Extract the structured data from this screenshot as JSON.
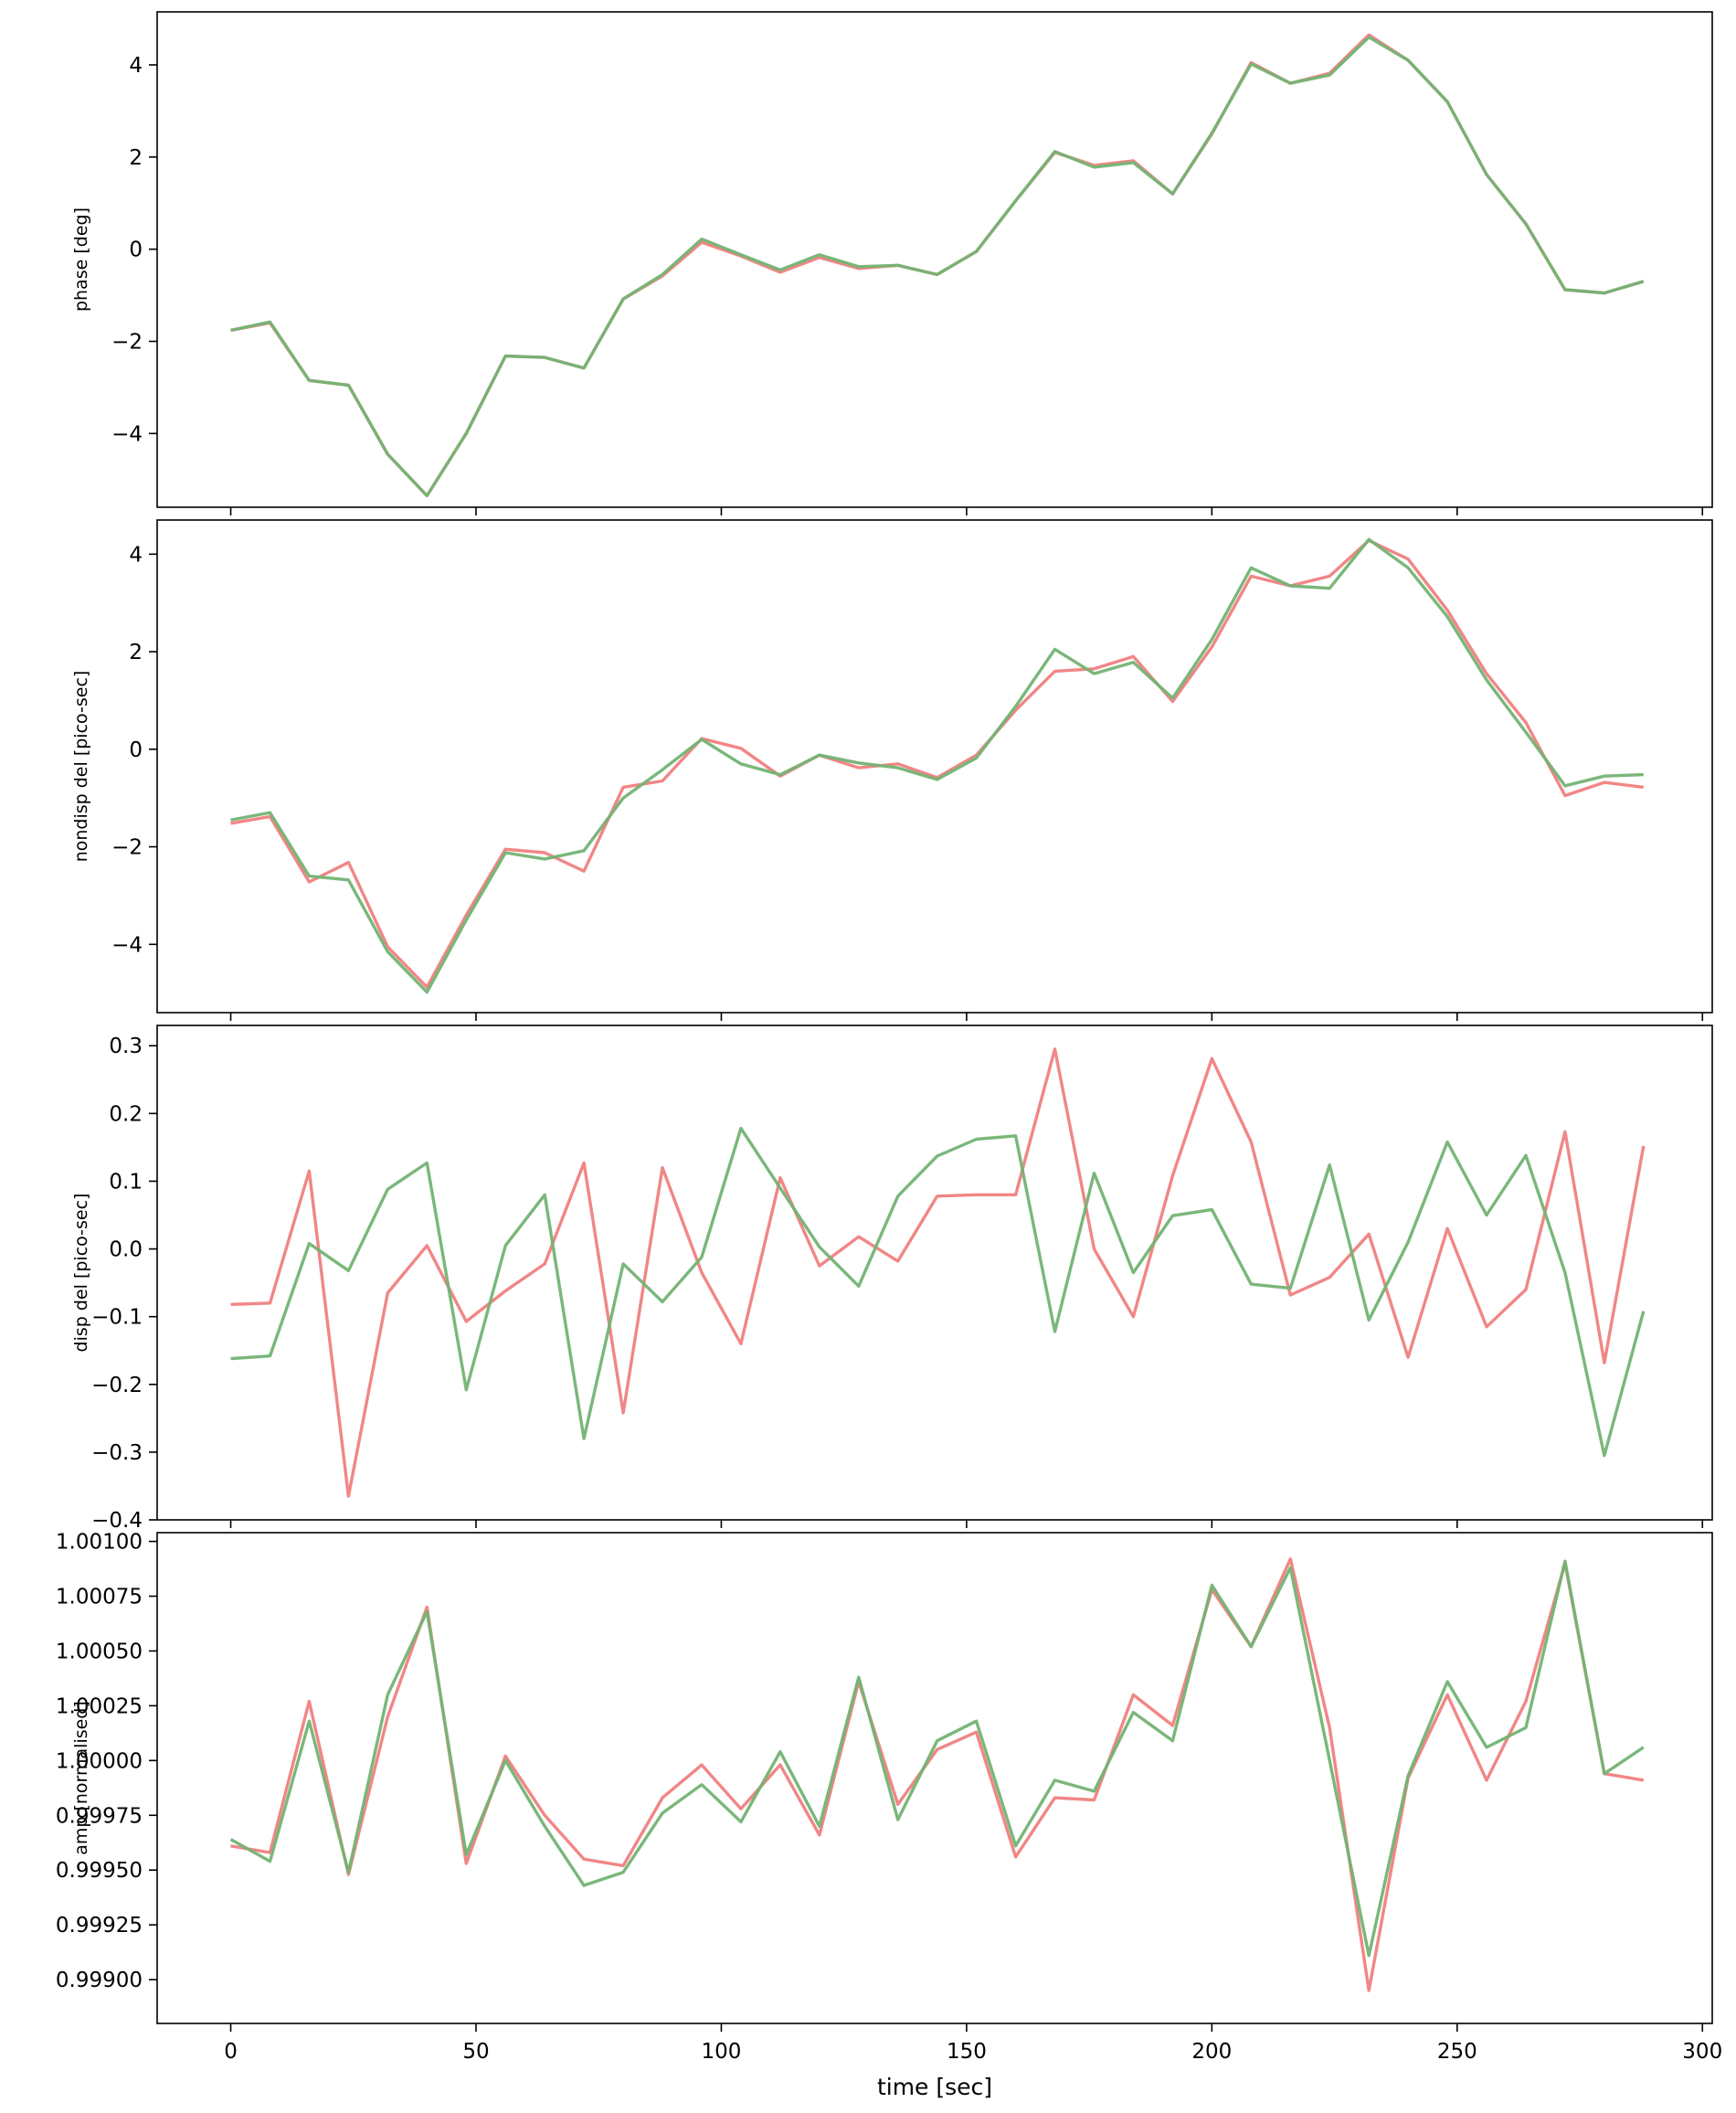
{
  "chart_data": [
    {
      "type": "line",
      "ylabel": "phase [deg]",
      "xlim": [
        -15,
        302
      ],
      "ylim": [
        -5.6,
        5.15
      ],
      "yticks": [
        -4,
        -2,
        0,
        2,
        4
      ],
      "ytick_labels": [
        "−4",
        "−2",
        "0",
        "2",
        "4"
      ],
      "x": [
        0,
        8,
        16,
        24,
        32,
        40,
        48,
        56,
        64,
        72,
        80,
        88,
        96,
        104,
        112,
        120,
        128,
        136,
        144,
        152,
        160,
        168,
        176,
        184,
        192,
        200,
        208,
        216,
        224,
        232,
        240,
        248,
        256,
        264,
        272,
        280,
        288
      ],
      "series": [
        {
          "color": "#f08080",
          "values": [
            -1.76,
            -1.6,
            -2.85,
            -2.95,
            -4.45,
            -5.35,
            -4.0,
            -2.32,
            -2.35,
            -2.58,
            -1.08,
            -0.58,
            0.15,
            -0.15,
            -0.5,
            -0.18,
            -0.42,
            -0.35,
            -0.55,
            -0.05,
            1.05,
            2.1,
            1.82,
            1.92,
            1.2,
            2.5,
            4.05,
            3.6,
            3.82,
            4.65,
            4.1,
            3.2,
            1.62,
            0.55,
            -0.88,
            -0.95,
            -0.7
          ]
        },
        {
          "color": "#73b373",
          "values": [
            -1.76,
            -1.58,
            -2.85,
            -2.95,
            -4.45,
            -5.35,
            -4.0,
            -2.32,
            -2.35,
            -2.58,
            -1.08,
            -0.55,
            0.22,
            -0.12,
            -0.45,
            -0.12,
            -0.38,
            -0.35,
            -0.55,
            -0.05,
            1.05,
            2.12,
            1.78,
            1.88,
            1.2,
            2.52,
            4.02,
            3.6,
            3.78,
            4.6,
            4.1,
            3.2,
            1.62,
            0.55,
            -0.88,
            -0.95,
            -0.7
          ]
        }
      ]
    },
    {
      "type": "line",
      "ylabel": "nondisp del [pico-sec]",
      "xlim": [
        -15,
        302
      ],
      "ylim": [
        -5.4,
        4.7
      ],
      "yticks": [
        -4,
        -2,
        0,
        2,
        4
      ],
      "ytick_labels": [
        "−4",
        "−2",
        "0",
        "2",
        "4"
      ],
      "x": [
        0,
        8,
        16,
        24,
        32,
        40,
        48,
        56,
        64,
        72,
        80,
        88,
        96,
        104,
        112,
        120,
        128,
        136,
        144,
        152,
        160,
        168,
        176,
        184,
        192,
        200,
        208,
        216,
        224,
        232,
        240,
        248,
        256,
        264,
        272,
        280,
        288
      ],
      "series": [
        {
          "color": "#f08080",
          "values": [
            -1.52,
            -1.38,
            -2.72,
            -2.32,
            -4.05,
            -4.88,
            -3.4,
            -2.05,
            -2.12,
            -2.5,
            -0.78,
            -0.65,
            0.22,
            0.02,
            -0.55,
            -0.12,
            -0.38,
            -0.3,
            -0.58,
            -0.12,
            0.8,
            1.6,
            1.65,
            1.9,
            0.98,
            2.1,
            3.55,
            3.35,
            3.55,
            4.28,
            3.9,
            2.85,
            1.55,
            0.55,
            -0.95,
            -0.68,
            -0.78
          ]
        },
        {
          "color": "#73b373",
          "values": [
            -1.45,
            -1.3,
            -2.6,
            -2.68,
            -4.15,
            -4.98,
            -3.5,
            -2.12,
            -2.25,
            -2.08,
            -1.0,
            -0.42,
            0.2,
            -0.3,
            -0.52,
            -0.12,
            -0.28,
            -0.38,
            -0.62,
            -0.18,
            0.88,
            2.05,
            1.55,
            1.78,
            1.05,
            2.25,
            3.72,
            3.35,
            3.3,
            4.3,
            3.72,
            2.72,
            1.42,
            0.35,
            -0.75,
            -0.55,
            -0.52
          ]
        }
      ]
    },
    {
      "type": "line",
      "ylabel": "disp del [pico-sec]",
      "xlim": [
        -15,
        302
      ],
      "ylim": [
        -0.4,
        0.33
      ],
      "yticks": [
        -0.4,
        -0.3,
        -0.2,
        -0.1,
        0.0,
        0.1,
        0.2,
        0.3
      ],
      "ytick_labels": [
        "−0.4",
        "−0.3",
        "−0.2",
        "−0.1",
        "0.0",
        "0.1",
        "0.2",
        "0.3"
      ],
      "x": [
        0,
        8,
        16,
        24,
        32,
        40,
        48,
        56,
        64,
        72,
        80,
        88,
        96,
        104,
        112,
        120,
        128,
        136,
        144,
        152,
        160,
        168,
        176,
        184,
        192,
        200,
        208,
        216,
        224,
        232,
        240,
        248,
        256,
        264,
        272,
        280,
        288
      ],
      "series": [
        {
          "color": "#f08080",
          "values": [
            -0.082,
            -0.08,
            0.115,
            -0.365,
            -0.065,
            0.005,
            -0.107,
            -0.062,
            -0.022,
            0.127,
            -0.242,
            0.12,
            -0.035,
            -0.14,
            0.105,
            -0.025,
            0.018,
            -0.018,
            0.078,
            0.08,
            0.08,
            0.295,
            0.0,
            -0.1,
            0.108,
            0.281,
            0.158,
            -0.068,
            -0.042,
            0.022,
            -0.16,
            0.03,
            -0.115,
            -0.06,
            0.173,
            -0.168,
            0.152
          ]
        },
        {
          "color": "#73b373",
          "values": [
            -0.162,
            -0.158,
            0.008,
            -0.032,
            0.088,
            0.127,
            -0.208,
            0.005,
            0.08,
            -0.28,
            -0.022,
            -0.078,
            -0.012,
            0.178,
            0.09,
            0.003,
            -0.055,
            0.078,
            0.137,
            0.162,
            0.167,
            -0.122,
            0.112,
            -0.035,
            0.049,
            0.058,
            -0.052,
            -0.058,
            0.124,
            -0.105,
            0.01,
            0.158,
            0.05,
            0.138,
            -0.035,
            -0.305,
            -0.092
          ]
        }
      ]
    },
    {
      "type": "line",
      "ylabel": "amp [normalised]",
      "xlabel": "time [sec]",
      "xlim": [
        -15,
        302
      ],
      "ylim": [
        0.9988,
        1.00104
      ],
      "yticks": [
        0.999,
        0.99925,
        0.9995,
        0.99975,
        1.0,
        1.00025,
        1.0005,
        1.00075,
        1.001
      ],
      "ytick_labels": [
        "0.99900",
        "0.99925",
        "0.99950",
        "0.99975",
        "1.00000",
        "1.00025",
        "1.00050",
        "1.00075",
        "1.00100"
      ],
      "xticks": [
        0,
        50,
        100,
        150,
        200,
        250,
        300
      ],
      "xtick_labels": [
        "0",
        "50",
        "100",
        "150",
        "200",
        "250",
        "300"
      ],
      "x": [
        0,
        8,
        16,
        24,
        32,
        40,
        48,
        56,
        64,
        72,
        80,
        88,
        96,
        104,
        112,
        120,
        128,
        136,
        144,
        152,
        160,
        168,
        176,
        184,
        192,
        200,
        208,
        216,
        224,
        232,
        240,
        248,
        256,
        264,
        272,
        280,
        288
      ],
      "series": [
        {
          "color": "#f08080",
          "values": [
            0.99961,
            0.99958,
            1.00027,
            0.99948,
            1.0002,
            1.0007,
            0.99953,
            1.00002,
            0.99975,
            0.99955,
            0.99952,
            0.99983,
            0.99998,
            0.99978,
            0.99998,
            0.99966,
            1.00036,
            0.9998,
            1.00005,
            1.00013,
            0.99956,
            0.99983,
            0.99982,
            1.0003,
            1.00016,
            1.00078,
            1.00052,
            1.00092,
            1.00015,
            0.99895,
            0.99992,
            1.0003,
            0.99991,
            1.00027,
            1.0009,
            0.99994,
            0.99991
          ]
        },
        {
          "color": "#73b373",
          "values": [
            0.99964,
            0.99954,
            1.00018,
            0.99949,
            1.0003,
            1.00068,
            0.99957,
            1.0,
            0.9997,
            0.99943,
            0.99949,
            0.99976,
            0.99989,
            0.99972,
            1.00004,
            0.9997,
            1.00038,
            0.99973,
            1.00009,
            1.00018,
            0.99961,
            0.99991,
            0.99986,
            1.00022,
            1.00009,
            1.0008,
            1.00052,
            1.00088,
            1.0,
            0.99911,
            0.99993,
            1.00036,
            1.00006,
            1.00015,
            1.00091,
            0.99994,
            1.00006
          ]
        }
      ]
    }
  ]
}
